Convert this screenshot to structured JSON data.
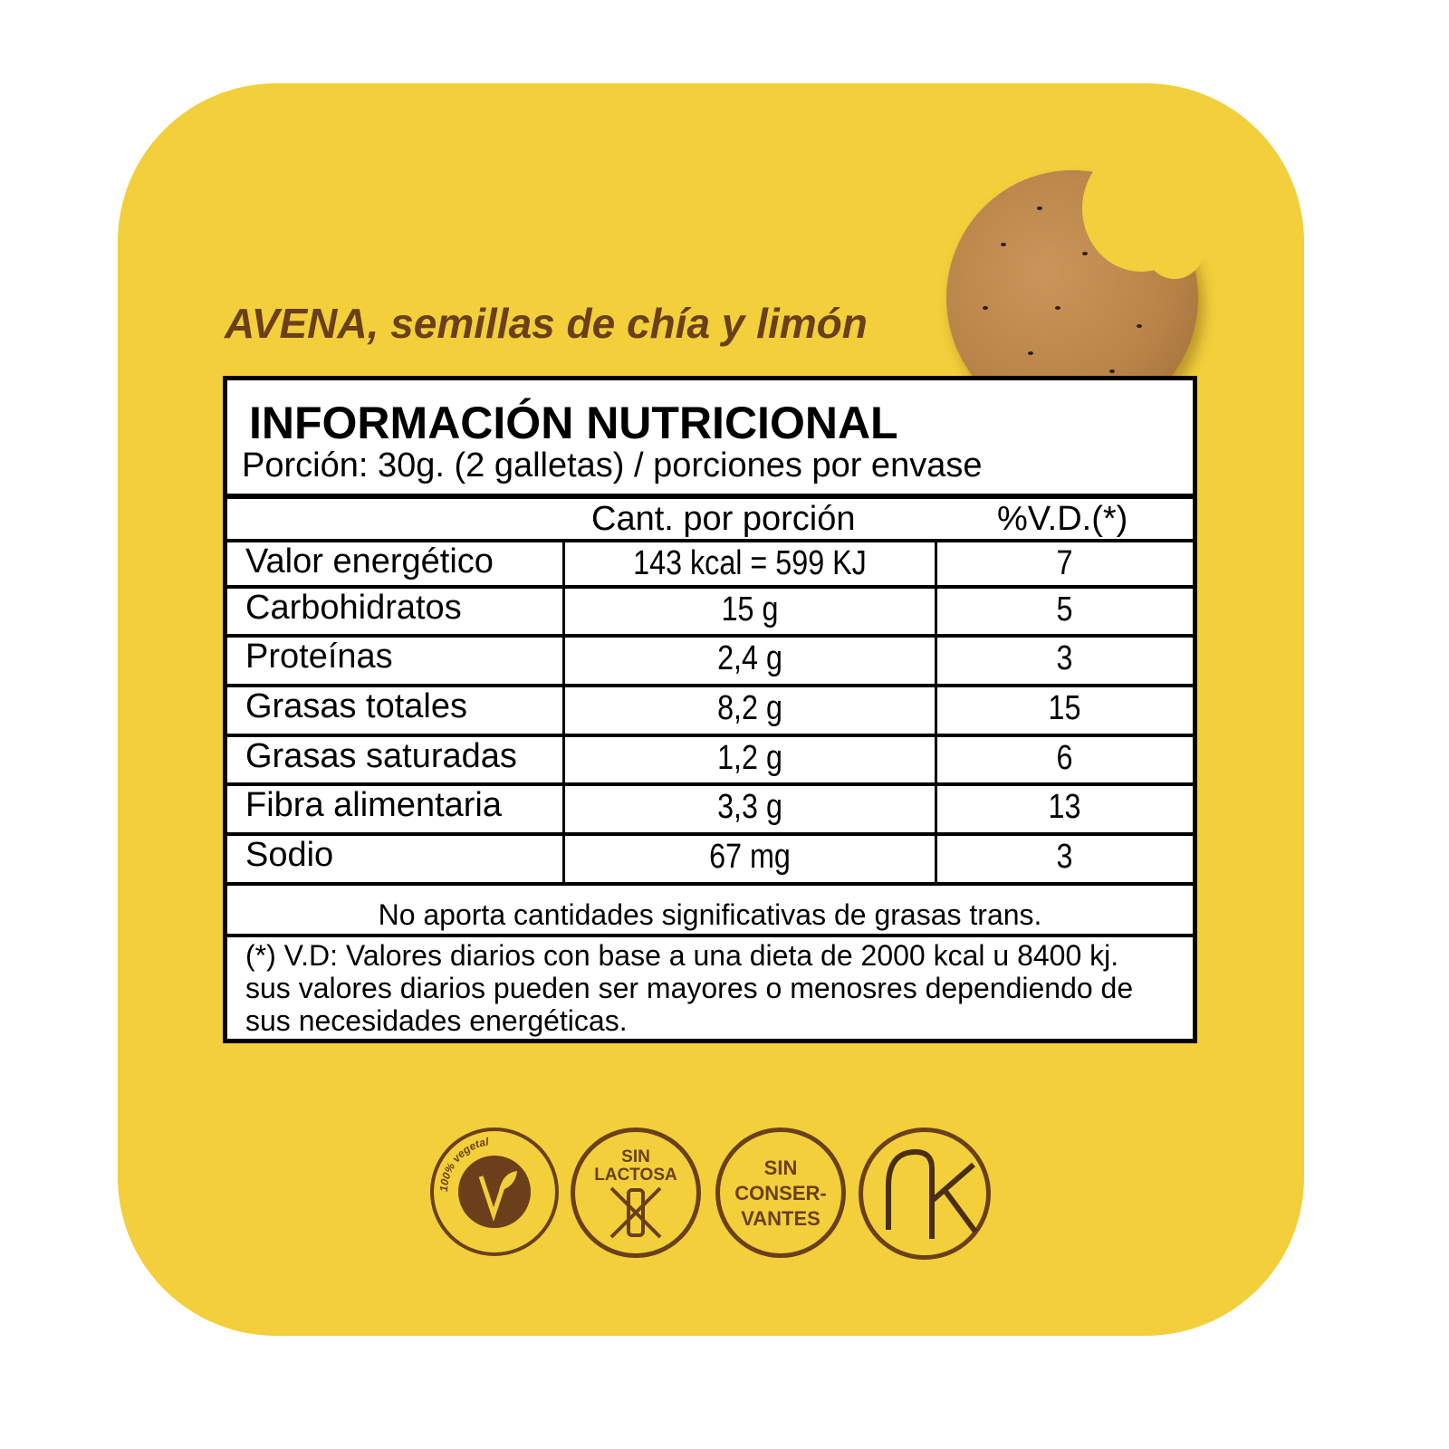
{
  "product": {
    "subtitle": "AVENA, semillas de chía y limón"
  },
  "label": {
    "title": "INFORMACIÓN NUTRICIONAL",
    "portion": "Porción: 30g. (2 galletas) / porciones por envase",
    "headers": {
      "amount": "Cant. por porción",
      "dv": "%V.D.(*)"
    },
    "rows": [
      {
        "name": "Valor energético",
        "amount": "143 kcal = 599 KJ",
        "dv": "7"
      },
      {
        "name": "Carbohidratos",
        "amount": "15 g",
        "dv": "5"
      },
      {
        "name": "Proteínas",
        "amount": "2,4 g",
        "dv": "3"
      },
      {
        "name": "Grasas totales",
        "amount": "8,2 g",
        "dv": "15"
      },
      {
        "name": "Grasas saturadas",
        "amount": "1,2 g",
        "dv": "6"
      },
      {
        "name": "Fibra alimentaria",
        "amount": "3,3 g",
        "dv": "13"
      },
      {
        "name": "Sodio",
        "amount": "67 mg",
        "dv": "3"
      }
    ],
    "note": "No aporta cantidades significativas de grasas trans.",
    "footnote": "(*) V.D: Valores diarios con base a una dieta de 2000 kcal u 8400 kj. sus valores diarios pueden ser mayores o menosres dependiendo de sus necesidades energéticas."
  },
  "badges": {
    "vegan": {
      "ring_text": "100% vegetal",
      "icon": "leaf-v-icon"
    },
    "lactose": {
      "line1": "SIN",
      "line2": "LACTOSA",
      "icon": "crossed-bottle-icon"
    },
    "preservatives": {
      "line1": "SIN",
      "line2": "CONSER-",
      "line3": "VANTES"
    },
    "kosher": {
      "logo": "AK"
    }
  },
  "colors": {
    "background": "#f2cf3b",
    "brand_brown": "#6b3f1a"
  }
}
